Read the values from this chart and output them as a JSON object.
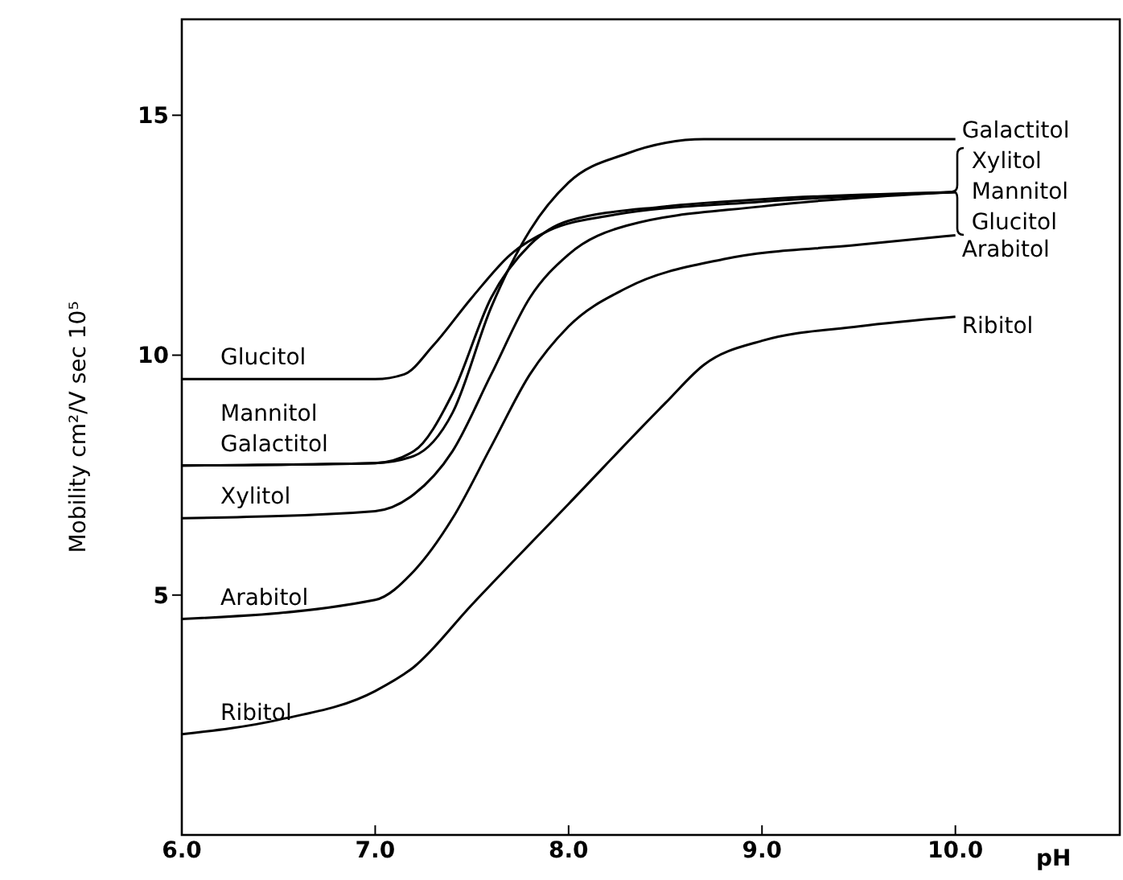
{
  "chart_data": {
    "type": "line",
    "xlabel": "pH",
    "ylabel": "Mobility cm²/V sec 10⁵",
    "xlim": [
      6,
      10.85
    ],
    "ylim": [
      0,
      17
    ],
    "xticks": [
      {
        "value": 6,
        "label": "6.0"
      },
      {
        "value": 7,
        "label": "7.0"
      },
      {
        "value": 8,
        "label": "8.0"
      },
      {
        "value": 9,
        "label": "9.0"
      },
      {
        "value": 10,
        "label": "10.0"
      }
    ],
    "yticks": [
      5,
      10,
      15
    ],
    "grid": false,
    "marker": "none",
    "line_style": "solid",
    "series": [
      {
        "name": "Galactitol",
        "color": "#000000",
        "x": [
          6,
          7,
          7.2,
          7.4,
          7.6,
          7.8,
          8,
          8.3,
          8.7,
          10
        ],
        "values": [
          7.7,
          7.75,
          7.9,
          8.8,
          11,
          12.6,
          13.6,
          14.2,
          14.5,
          14.5
        ]
      },
      {
        "name": "Xylitol",
        "color": "#000000",
        "x": [
          6,
          7,
          7.2,
          7.4,
          7.6,
          7.8,
          8,
          8.3,
          9,
          10
        ],
        "values": [
          6.6,
          6.75,
          7.1,
          8,
          9.6,
          11.2,
          12.1,
          12.7,
          13.1,
          13.4
        ]
      },
      {
        "name": "Mannitol",
        "color": "#000000",
        "x": [
          6,
          7,
          7.2,
          7.4,
          7.6,
          7.8,
          8,
          8.5,
          9,
          10
        ],
        "values": [
          7.7,
          7.75,
          8,
          9.2,
          11.2,
          12.3,
          12.8,
          13.1,
          13.25,
          13.4
        ]
      },
      {
        "name": "Glucitol",
        "color": "#000000",
        "x": [
          6,
          7,
          7.15,
          7.3,
          7.5,
          7.7,
          7.9,
          8.2,
          9,
          10
        ],
        "values": [
          9.5,
          9.5,
          9.6,
          10.2,
          11.2,
          12.1,
          12.6,
          12.9,
          13.2,
          13.4
        ]
      },
      {
        "name": "Arabitol",
        "color": "#000000",
        "x": [
          6,
          7,
          7.2,
          7.4,
          7.6,
          7.8,
          8,
          8.3,
          8.8,
          9.5,
          10
        ],
        "values": [
          4.5,
          4.9,
          5.5,
          6.6,
          8.1,
          9.6,
          10.6,
          11.4,
          12,
          12.3,
          12.5
        ]
      },
      {
        "name": "Ribitol",
        "color": "#000000",
        "x": [
          6,
          6.5,
          7,
          7.2,
          7.5,
          8,
          8.5,
          8.7,
          9,
          9.5,
          10
        ],
        "values": [
          2.1,
          2.4,
          3,
          3.5,
          4.8,
          6.9,
          9,
          9.8,
          10.3,
          10.6,
          10.8
        ]
      }
    ]
  }
}
